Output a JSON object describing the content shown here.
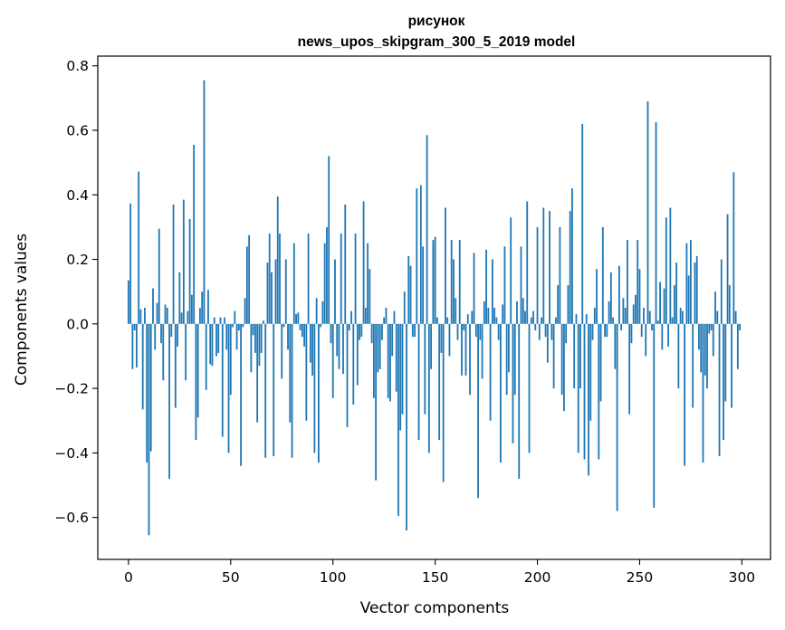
{
  "chart_data": {
    "type": "bar",
    "title_line1": "рисунок",
    "title_line2": "news_upos_skipgram_300_5_2019 model",
    "xlabel": "Vector components",
    "ylabel": "Components values",
    "xlim": [
      -15,
      314
    ],
    "ylim": [
      -0.73,
      0.83
    ],
    "xticks": [
      0,
      50,
      100,
      150,
      200,
      250,
      300
    ],
    "xtick_labels": [
      "0",
      "50",
      "100",
      "150",
      "200",
      "250",
      "300"
    ],
    "yticks": [
      -0.6,
      -0.4,
      -0.2,
      0.0,
      0.2,
      0.4,
      0.6,
      0.8
    ],
    "ytick_labels": [
      "−0.6",
      "−0.4",
      "−0.2",
      "0.0",
      "0.2",
      "0.4",
      "0.6",
      "0.8"
    ],
    "bar_color": "#1f77b4",
    "values": [
      0.135,
      0.373,
      -0.14,
      -0.02,
      -0.135,
      0.472,
      0.045,
      -0.265,
      0.05,
      -0.43,
      -0.655,
      -0.395,
      0.11,
      -0.08,
      0.065,
      0.295,
      -0.06,
      -0.175,
      0.06,
      0.05,
      -0.48,
      -0.04,
      0.37,
      -0.26,
      -0.07,
      0.16,
      0.035,
      0.385,
      -0.175,
      0.04,
      0.325,
      0.09,
      0.555,
      -0.36,
      -0.29,
      0.05,
      0.1,
      0.755,
      -0.205,
      0.105,
      -0.125,
      -0.13,
      0.02,
      -0.1,
      -0.09,
      0.02,
      -0.35,
      0.02,
      -0.08,
      -0.4,
      -0.22,
      -0.01,
      0.04,
      -0.08,
      -0.02,
      -0.44,
      -0.01,
      0.08,
      0.24,
      0.275,
      -0.15,
      -0.035,
      -0.09,
      -0.305,
      -0.13,
      -0.09,
      0.01,
      -0.415,
      0.19,
      0.28,
      0.16,
      -0.41,
      0.2,
      0.395,
      0.28,
      -0.17,
      -0.01,
      0.2,
      -0.08,
      -0.305,
      -0.415,
      0.25,
      0.03,
      0.035,
      -0.02,
      -0.04,
      -0.07,
      -0.3,
      0.28,
      -0.12,
      -0.16,
      -0.4,
      0.08,
      -0.43,
      -0.01,
      0.07,
      0.25,
      0.3,
      0.52,
      -0.06,
      -0.23,
      0.2,
      -0.1,
      -0.14,
      0.28,
      -0.155,
      0.37,
      -0.32,
      -0.02,
      0.04,
      -0.25,
      0.28,
      -0.19,
      -0.05,
      -0.04,
      0.38,
      0.05,
      0.25,
      0.17,
      -0.06,
      -0.23,
      -0.485,
      -0.15,
      -0.14,
      -0.05,
      0.02,
      0.05,
      -0.23,
      -0.24,
      -0.1,
      0.04,
      -0.21,
      -0.595,
      -0.33,
      -0.28,
      0.1,
      -0.64,
      0.21,
      0.18,
      -0.04,
      -0.04,
      0.42,
      -0.36,
      0.43,
      0.24,
      -0.28,
      0.585,
      -0.4,
      -0.14,
      0.26,
      0.27,
      0.02,
      -0.36,
      -0.09,
      -0.49,
      0.36,
      0.02,
      -0.1,
      0.26,
      0.2,
      0.08,
      -0.05,
      0.26,
      -0.16,
      -0.02,
      -0.16,
      0.03,
      -0.22,
      0.04,
      0.22,
      -0.04,
      -0.54,
      -0.05,
      -0.17,
      0.07,
      0.23,
      0.05,
      -0.3,
      0.2,
      0.05,
      0.02,
      -0.05,
      -0.43,
      0.06,
      0.24,
      -0.22,
      -0.15,
      0.33,
      -0.37,
      -0.22,
      0.07,
      -0.48,
      0.24,
      0.08,
      0.04,
      0.38,
      -0.4,
      0.02,
      0.04,
      -0.02,
      0.3,
      -0.05,
      0.02,
      0.36,
      -0.04,
      -0.12,
      0.35,
      -0.05,
      -0.2,
      0.02,
      0.12,
      0.3,
      -0.22,
      -0.27,
      -0.06,
      0.12,
      0.35,
      0.42,
      -0.2,
      0.03,
      -0.4,
      -0.2,
      0.62,
      -0.42,
      0.03,
      -0.47,
      -0.3,
      -0.05,
      0.05,
      0.17,
      -0.42,
      -0.24,
      0.3,
      -0.04,
      -0.04,
      0.07,
      0.16,
      0.02,
      -0.14,
      -0.58,
      0.18,
      -0.02,
      0.08,
      0.05,
      0.26,
      -0.28,
      -0.06,
      0.06,
      0.09,
      0.26,
      0.17,
      -0.04,
      0.05,
      -0.1,
      0.69,
      0.04,
      -0.02,
      -0.57,
      0.625,
      0.01,
      0.13,
      -0.08,
      0.11,
      0.33,
      -0.07,
      0.36,
      0.02,
      0.12,
      0.19,
      -0.2,
      0.05,
      0.04,
      -0.44,
      0.25,
      0.15,
      0.26,
      -0.26,
      0.19,
      0.21,
      -0.08,
      -0.15,
      -0.43,
      -0.16,
      -0.2,
      -0.03,
      -0.02,
      -0.1,
      0.1,
      0.04,
      -0.41,
      0.2,
      -0.36,
      -0.24,
      0.34,
      0.12,
      -0.26,
      0.47,
      0.04,
      -0.14,
      -0.02
    ]
  }
}
